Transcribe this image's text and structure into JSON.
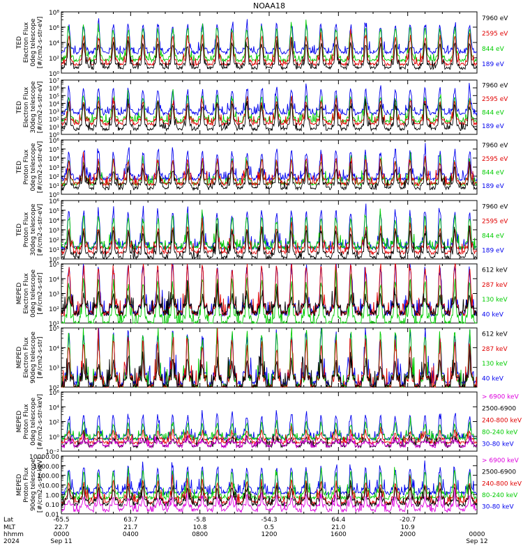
{
  "title": "NOAA18",
  "panels": [
    {
      "ylabel": [
        "TED",
        "Electron Flux",
        "0deg telescope",
        "[#/cm2-s-str-eV]"
      ],
      "yticks": [
        "10⁰",
        "10²",
        "10⁴",
        "10⁶",
        "10⁸"
      ],
      "legend": [
        {
          "label": "7960 eV",
          "color": "#000000"
        },
        {
          "label": "2595 eV",
          "color": "#e00000"
        },
        {
          "label": "844 eV",
          "color": "#00cc00"
        },
        {
          "label": "189 eV",
          "color": "#0000ee"
        }
      ]
    },
    {
      "ylabel": [
        "TED",
        "Electron Flux",
        "30deg telescope",
        "[#/cm2-s-str-eV]"
      ],
      "yticks": [
        "10⁰",
        "10¹",
        "10²",
        "10³",
        "10⁴",
        "10⁵",
        "10⁶",
        "10⁷"
      ],
      "legend": [
        {
          "label": "7960 eV",
          "color": "#000000"
        },
        {
          "label": "2595 eV",
          "color": "#e00000"
        },
        {
          "label": "844 eV",
          "color": "#00cc00"
        },
        {
          "label": "189 eV",
          "color": "#0000ee"
        }
      ]
    },
    {
      "ylabel": [
        "TED",
        "Proton Flux",
        "0deg telescope",
        "[#/cm2-s-str-eV]"
      ],
      "yticks": [
        "10⁰",
        "10¹",
        "10²",
        "10³",
        "10⁴",
        "10⁵",
        "10⁶"
      ],
      "legend": [
        {
          "label": "7960 eV",
          "color": "#000000"
        },
        {
          "label": "2595 eV",
          "color": "#e00000"
        },
        {
          "label": "844 eV",
          "color": "#00cc00"
        },
        {
          "label": "189 eV",
          "color": "#0000ee"
        }
      ]
    },
    {
      "ylabel": [
        "TED",
        "Proton Flux",
        "30deg telescope",
        "[#/cm2-s-str-eV]"
      ],
      "yticks": [
        "10⁰",
        "10¹",
        "10²",
        "10³",
        "10⁴",
        "10⁵",
        "10⁶"
      ],
      "legend": [
        {
          "label": "7960 eV",
          "color": "#000000"
        },
        {
          "label": "2595 eV",
          "color": "#e00000"
        },
        {
          "label": "844 eV",
          "color": "#00cc00"
        },
        {
          "label": "189 eV",
          "color": "#0000ee"
        }
      ]
    },
    {
      "ylabel": [
        "MEPED",
        "Electron Flux",
        "0deg telescope",
        "[#/cm2-s-str]"
      ],
      "yticks": [
        "10¹",
        "10²",
        "10³",
        "10⁴",
        "10⁵"
      ],
      "legend": [
        {
          "label": "612 keV",
          "color": "#000000"
        },
        {
          "label": "287 keV",
          "color": "#e00000"
        },
        {
          "label": "130 keV",
          "color": "#00cc00"
        },
        {
          "label": "40 keV",
          "color": "#0000ee"
        }
      ]
    },
    {
      "ylabel": [
        "MEPED",
        "Electron Flux",
        "90deg telescope",
        "[#/cm2-s-str]"
      ],
      "yticks": [
        "10²",
        "10³",
        "10⁴",
        "10⁵"
      ],
      "legend": [
        {
          "label": "612 keV",
          "color": "#000000"
        },
        {
          "label": "287 keV",
          "color": "#e00000"
        },
        {
          "label": "130 keV",
          "color": "#00cc00"
        },
        {
          "label": "40 keV",
          "color": "#0000ee"
        }
      ]
    },
    {
      "ylabel": [
        "MEPED",
        "Proton Flux",
        "0deg telescope",
        "[#/cm2-s-str-keV]"
      ],
      "yticks": [
        "10⁻²",
        "10⁰",
        "10²",
        "10⁴",
        "10⁶"
      ],
      "legend": [
        {
          "label": "> 6900 keV",
          "color": "#dd00dd"
        },
        {
          "label": "2500-6900",
          "color": "#000000"
        },
        {
          "label": "240-800 keV",
          "color": "#e00000"
        },
        {
          "label": "80-240 keV",
          "color": "#00cc00"
        },
        {
          "label": "30-80 keV",
          "color": "#0000ee"
        }
      ]
    },
    {
      "ylabel": [
        "MEPED",
        "Proton Flux",
        "90deg telescope",
        "[#/cm2-s-str-keV]"
      ],
      "yticks": [
        "0.01",
        "0.10",
        "1.00",
        "10.00",
        "100.00",
        "1000.00",
        "10000.00"
      ],
      "legend": [
        {
          "label": "> 6900 keV",
          "color": "#dd00dd"
        },
        {
          "label": "2500-6900",
          "color": "#000000"
        },
        {
          "label": "240-800 keV",
          "color": "#e00000"
        },
        {
          "label": "80-240 keV",
          "color": "#00cc00"
        },
        {
          "label": "30-80 keV",
          "color": "#0000ee"
        }
      ]
    }
  ],
  "xaxis": {
    "row_labels": [
      "Lat",
      "MLT",
      "hhmm",
      "2024"
    ],
    "ticks": [
      {
        "lat": "-65.5",
        "mlt": "22.7",
        "hhmm": "0000",
        "date": "Sep 11"
      },
      {
        "lat": "63.7",
        "mlt": "21.7",
        "hhmm": "0400",
        "date": ""
      },
      {
        "lat": "-5.8",
        "mlt": "10.8",
        "hhmm": "0800",
        "date": ""
      },
      {
        "lat": "-54.3",
        "mlt": "0.5",
        "hhmm": "1200",
        "date": ""
      },
      {
        "lat": "64.4",
        "mlt": "21.0",
        "hhmm": "1600",
        "date": ""
      },
      {
        "lat": "-20.7",
        "mlt": "10.9",
        "hhmm": "2000",
        "date": ""
      },
      {
        "lat": "",
        "mlt": "",
        "hhmm": "0000",
        "date": "Sep 12"
      }
    ]
  },
  "chart_data": {
    "type": "line",
    "title": "NOAA18",
    "x_range_hhmm": [
      "0000",
      "0000"
    ],
    "x_range_dates": [
      "Sep 11 2024",
      "Sep 12 2024"
    ],
    "log_y": true,
    "orbits_per_day": 14,
    "series_panels": [
      {
        "panel": "TED Electron Flux 0deg",
        "ylim": [
          1,
          100000000
        ],
        "series": [
          {
            "name": "189 eV",
            "baseline": 1000,
            "peak": 3000000
          },
          {
            "name": "844 eV",
            "baseline": 100,
            "peak": 1000000
          },
          {
            "name": "2595 eV",
            "baseline": 30,
            "peak": 100000
          },
          {
            "name": "7960 eV",
            "baseline": 10,
            "peak": 10000
          }
        ]
      },
      {
        "panel": "TED Electron Flux 30deg",
        "ylim": [
          1,
          10000000
        ],
        "series": [
          {
            "name": "189 eV",
            "baseline": 1000,
            "peak": 1000000
          },
          {
            "name": "844 eV",
            "baseline": 100,
            "peak": 100000
          },
          {
            "name": "2595 eV",
            "baseline": 50,
            "peak": 30000
          },
          {
            "name": "7960 eV",
            "baseline": 10,
            "peak": 10000
          }
        ]
      },
      {
        "panel": "TED Proton Flux 0deg",
        "ylim": [
          1,
          1000000
        ],
        "series": [
          {
            "name": "189 eV",
            "baseline": 100,
            "peak": 100000
          },
          {
            "name": "844 eV",
            "baseline": 30,
            "peak": 10000
          },
          {
            "name": "2595 eV",
            "baseline": 30,
            "peak": 10000
          },
          {
            "name": "7960 eV",
            "baseline": 10,
            "peak": 1000
          }
        ]
      },
      {
        "panel": "TED Proton Flux 30deg",
        "ylim": [
          1,
          1000000
        ],
        "series": [
          {
            "name": "189 eV",
            "baseline": 30,
            "peak": 100000
          },
          {
            "name": "844 eV",
            "baseline": 30,
            "peak": 30000
          },
          {
            "name": "2595 eV",
            "baseline": 10,
            "peak": 3000
          },
          {
            "name": "7960 eV",
            "baseline": 3,
            "peak": 1000
          }
        ]
      },
      {
        "panel": "MEPED Electron Flux 0deg",
        "ylim": [
          10,
          100000
        ],
        "series": [
          {
            "name": "40 keV",
            "baseline": 100,
            "peak": 100000
          },
          {
            "name": "130 keV",
            "baseline": 20,
            "peak": 10000
          },
          {
            "name": "287 keV",
            "baseline": 100,
            "peak": 100000
          },
          {
            "name": "612 keV",
            "baseline": 100,
            "peak": 1000
          }
        ]
      },
      {
        "panel": "MEPED Electron Flux 90deg",
        "ylim": [
          100,
          100000
        ],
        "series": [
          {
            "name": "40 keV",
            "baseline": 300,
            "peak": 100000
          },
          {
            "name": "130 keV",
            "baseline": 200,
            "peak": 100000
          },
          {
            "name": "287 keV",
            "baseline": 200,
            "peak": 30000
          },
          {
            "name": "612 keV",
            "baseline": 200,
            "peak": 3000
          }
        ]
      },
      {
        "panel": "MEPED Proton Flux 0deg",
        "ylim": [
          0.01,
          1000000
        ],
        "series": [
          {
            "name": "30-80 keV",
            "baseline": 1,
            "peak": 1000
          },
          {
            "name": "80-240 keV",
            "baseline": 1,
            "peak": 100
          },
          {
            "name": "240-800 keV",
            "baseline": 0.3,
            "peak": 10
          },
          {
            "name": "2500-6900",
            "baseline": 0.1,
            "peak": 1
          },
          {
            "name": "> 6900 keV",
            "baseline": 0.1,
            "peak": 0.3
          }
        ]
      },
      {
        "panel": "MEPED Proton Flux 90deg",
        "ylim": [
          0.01,
          10000
        ],
        "series": [
          {
            "name": "30-80 keV",
            "baseline": 3,
            "peak": 1000
          },
          {
            "name": "80-240 keV",
            "baseline": 1,
            "peak": 300
          },
          {
            "name": "240-800 keV",
            "baseline": 0.3,
            "peak": 30
          },
          {
            "name": "2500-6900",
            "baseline": 0.2,
            "peak": 10
          },
          {
            "name": "> 6900 keV",
            "baseline": 0.05,
            "peak": 1
          }
        ]
      }
    ]
  }
}
